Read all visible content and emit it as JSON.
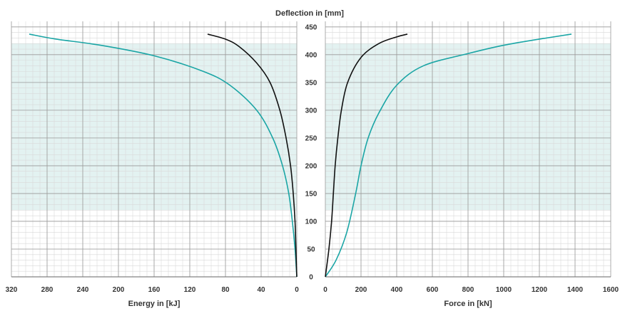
{
  "chart_data": {
    "type": "line",
    "title": "Deflection in [mm]",
    "colors": {
      "series_a": "#1aa5a5",
      "series_b": "#111111",
      "band": "#e3f2f1",
      "grid_major": "#9a9a9a",
      "grid_minor": "#d9d9d9"
    },
    "y_axis": {
      "label": "Deflection in [mm]",
      "range": [
        0,
        460
      ],
      "ticks": [
        "0",
        "50",
        "100",
        "150",
        "200",
        "250",
        "300",
        "350",
        "400",
        "450"
      ],
      "shaded_band": [
        120,
        420
      ]
    },
    "panels": [
      {
        "id": "energy",
        "xlabel": "Energy in [kJ]",
        "x_range": [
          320,
          0
        ],
        "x_ticks": [
          "320",
          "280",
          "240",
          "200",
          "160",
          "120",
          "80",
          "40",
          "0"
        ],
        "series": [
          {
            "color": "#1aa5a5",
            "points": [
              [
                0,
                0
              ],
              [
                2,
                50
              ],
              [
                5,
                100
              ],
              [
                9,
                150
              ],
              [
                16,
                200
              ],
              [
                27,
                250
              ],
              [
                45,
                300
              ],
              [
                75,
                345
              ],
              [
                105,
                370
              ],
              [
                160,
                398
              ],
              [
                220,
                417
              ],
              [
                270,
                428
              ],
              [
                300,
                437
              ]
            ]
          },
          {
            "color": "#111111",
            "points": [
              [
                0,
                0
              ],
              [
                1,
                50
              ],
              [
                2,
                100
              ],
              [
                4,
                150
              ],
              [
                7,
                200
              ],
              [
                12,
                250
              ],
              [
                19,
                300
              ],
              [
                30,
                350
              ],
              [
                45,
                385
              ],
              [
                65,
                415
              ],
              [
                80,
                428
              ],
              [
                100,
                437
              ]
            ]
          }
        ]
      },
      {
        "id": "force",
        "xlabel": "Force in [kN]",
        "x_range": [
          0,
          1600
        ],
        "x_ticks": [
          "0",
          "200",
          "400",
          "600",
          "800",
          "1000",
          "1200",
          "1400",
          "1600"
        ],
        "series": [
          {
            "color": "#1aa5a5",
            "points": [
              [
                0,
                0
              ],
              [
                60,
                30
              ],
              [
                120,
                80
              ],
              [
                170,
                150
              ],
              [
                200,
                200
              ],
              [
                240,
                250
              ],
              [
                300,
                295
              ],
              [
                400,
                345
              ],
              [
                550,
                380
              ],
              [
                800,
                402
              ],
              [
                1000,
                417
              ],
              [
                1200,
                428
              ],
              [
                1380,
                437
              ]
            ]
          },
          {
            "color": "#111111",
            "points": [
              [
                0,
                0
              ],
              [
                20,
                50
              ],
              [
                35,
                100
              ],
              [
                45,
                150
              ],
              [
                55,
                200
              ],
              [
                70,
                250
              ],
              [
                90,
                300
              ],
              [
                125,
                350
              ],
              [
                200,
                395
              ],
              [
                300,
                420
              ],
              [
                400,
                432
              ],
              [
                460,
                437
              ]
            ]
          }
        ]
      }
    ]
  }
}
